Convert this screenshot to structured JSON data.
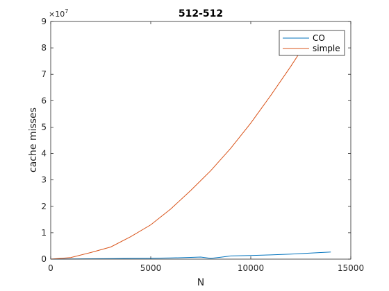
{
  "chart_data": {
    "type": "line",
    "title": "512-512",
    "xlabel": "N",
    "ylabel": "cache misses",
    "xlim": [
      0,
      15000
    ],
    "ylim": [
      0,
      90000000
    ],
    "x_ticks": [
      0,
      5000,
      10000,
      15000
    ],
    "x_tick_labels": [
      "0",
      "5000",
      "10000",
      "15000"
    ],
    "y_ticks": [
      0,
      10000000,
      20000000,
      30000000,
      40000000,
      50000000,
      60000000,
      70000000,
      80000000,
      90000000
    ],
    "y_tick_labels": [
      "0",
      "1",
      "2",
      "3",
      "4",
      "5",
      "6",
      "7",
      "8",
      "9"
    ],
    "y_exponent_label": "×10",
    "y_exponent_power": "7",
    "legend_position": "top-right",
    "series": [
      {
        "name": "CO",
        "color": "#0072bd",
        "x": [
          0,
          1000,
          2000,
          3000,
          4000,
          5000,
          6000,
          7000,
          7500,
          8000,
          8500,
          9000,
          10000,
          11000,
          12000,
          13000,
          14000
        ],
        "y": [
          0,
          50000,
          120000,
          200000,
          280000,
          320000,
          450000,
          650000,
          800000,
          300000,
          700000,
          1200000,
          1400000,
          1600000,
          1900000,
          2300000,
          2700000
        ]
      },
      {
        "name": "simple",
        "color": "#d95319",
        "x": [
          0,
          1000,
          2000,
          3000,
          4000,
          5000,
          6000,
          7000,
          8000,
          9000,
          10000,
          11000,
          12000,
          12600
        ],
        "y": [
          0,
          600000,
          2500000,
          4600000,
          8500000,
          13000000,
          19000000,
          26000000,
          33500000,
          42000000,
          51500000,
          62000000,
          73000000,
          80000000
        ]
      }
    ]
  }
}
